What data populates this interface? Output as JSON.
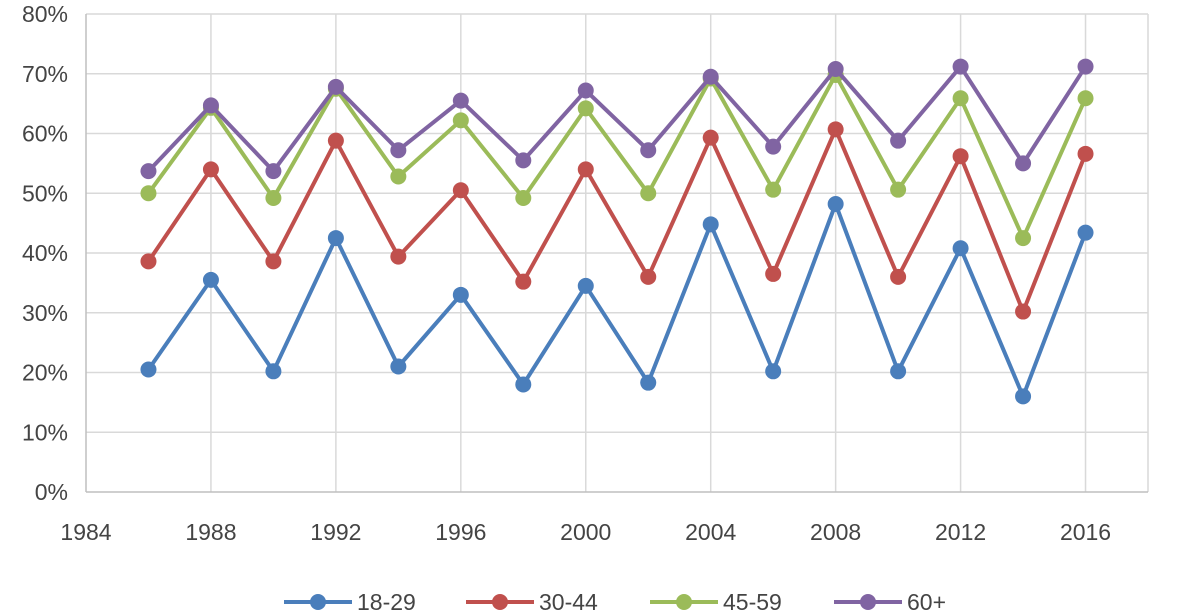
{
  "chart_data": {
    "type": "line",
    "title": "",
    "xlabel": "",
    "ylabel": "",
    "x": [
      1986,
      1988,
      1990,
      1992,
      1994,
      1996,
      1998,
      2000,
      2002,
      2004,
      2006,
      2008,
      2010,
      2012,
      2014,
      2016
    ],
    "xlim": [
      1984,
      2018
    ],
    "ylim": [
      0,
      80
    ],
    "x_ticks": [
      1984,
      1988,
      1992,
      1996,
      2000,
      2004,
      2008,
      2012,
      2016
    ],
    "y_ticks": [
      0,
      10,
      20,
      30,
      40,
      50,
      60,
      70,
      80
    ],
    "y_tick_labels": [
      "0%",
      "10%",
      "20%",
      "30%",
      "40%",
      "50%",
      "60%",
      "70%",
      "80%"
    ],
    "grid": "vertical and horizontal",
    "legend_position": "bottom",
    "series": [
      {
        "name": "18-29",
        "color": "#4a7ebb",
        "values": [
          20.5,
          35.5,
          20.2,
          42.5,
          21,
          33,
          18,
          34.5,
          18.3,
          44.8,
          20.2,
          48.2,
          20.2,
          40.8,
          16,
          43.4
        ]
      },
      {
        "name": "30-44",
        "color": "#c0504d",
        "values": [
          38.6,
          54,
          38.6,
          58.8,
          39.4,
          50.5,
          35.2,
          54,
          36,
          59.3,
          36.5,
          60.7,
          36,
          56.2,
          30.2,
          56.6
        ]
      },
      {
        "name": "45-59",
        "color": "#9bbb59",
        "values": [
          50,
          64.3,
          49.2,
          67.5,
          52.8,
          62.2,
          49.2,
          64.2,
          50,
          69.2,
          50.6,
          69.8,
          50.6,
          65.9,
          42.5,
          65.9
        ]
      },
      {
        "name": "60+",
        "color": "#8064a2",
        "values": [
          53.7,
          64.7,
          53.7,
          67.8,
          57.2,
          65.5,
          55.5,
          67.2,
          57.2,
          69.5,
          57.8,
          70.8,
          58.8,
          71.2,
          55,
          71.2
        ]
      }
    ]
  }
}
